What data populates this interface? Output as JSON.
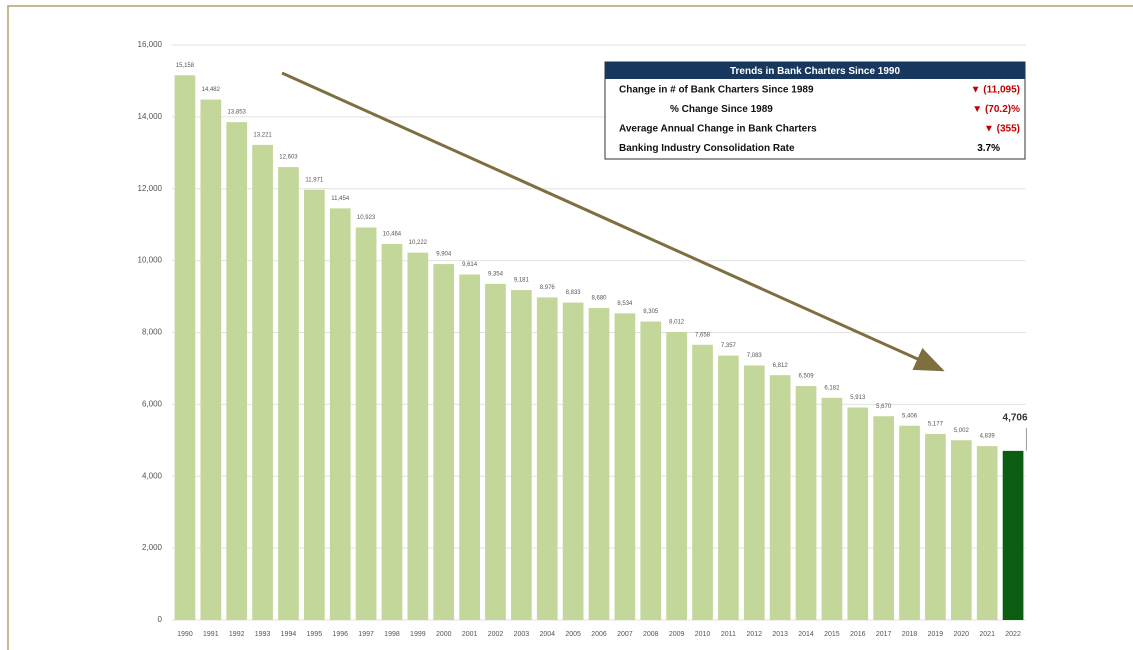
{
  "chart_data": {
    "type": "bar",
    "categories": [
      "1990",
      "1991",
      "1992",
      "1993",
      "1994",
      "1995",
      "1996",
      "1997",
      "1998",
      "1999",
      "2000",
      "2001",
      "2002",
      "2003",
      "2004",
      "2005",
      "2006",
      "2007",
      "2008",
      "2009",
      "2010",
      "2011",
      "2012",
      "2013",
      "2014",
      "2015",
      "2016",
      "2017",
      "2018",
      "2019",
      "2020",
      "2021",
      "2022"
    ],
    "values": [
      15158,
      14482,
      13853,
      13221,
      12603,
      11971,
      11454,
      10923,
      10464,
      10222,
      9904,
      9614,
      9354,
      9181,
      8976,
      8833,
      8680,
      8534,
      8305,
      8012,
      7658,
      7357,
      7083,
      6812,
      6509,
      6182,
      5913,
      5670,
      5406,
      5177,
      5002,
      4839,
      4706
    ],
    "value_labels": [
      "15,158",
      "14,482",
      "13,853",
      "13,221",
      "12,603",
      "11,971",
      "11,454",
      "10,923",
      "10,464",
      "10,222",
      "9,904",
      "9,614",
      "9,354",
      "9,181",
      "8,976",
      "8,833",
      "8,680",
      "8,534",
      "8,305",
      "8,012",
      "7,658",
      "7,357",
      "7,083",
      "6,812",
      "6,509",
      "6,182",
      "5,913",
      "5,670",
      "5,406",
      "5,177",
      "5,002",
      "4,839",
      "4,706"
    ],
    "colors": [
      "#c4d79b",
      "#c4d79b",
      "#c4d79b",
      "#c4d79b",
      "#c4d79b",
      "#c4d79b",
      "#c4d79b",
      "#c4d79b",
      "#c4d79b",
      "#c4d79b",
      "#c4d79b",
      "#c4d79b",
      "#c4d79b",
      "#c4d79b",
      "#c4d79b",
      "#c4d79b",
      "#c4d79b",
      "#c4d79b",
      "#c4d79b",
      "#c4d79b",
      "#c4d79b",
      "#c4d79b",
      "#c4d79b",
      "#c4d79b",
      "#c4d79b",
      "#c4d79b",
      "#c4d79b",
      "#c4d79b",
      "#c4d79b",
      "#c4d79b",
      "#c4d79b",
      "#c4d79b",
      "#0b5d12"
    ],
    "ylim": [
      0,
      16000
    ],
    "yticks": [
      0,
      {
        "value": 2000,
        "label": "2,000"
      },
      {
        "value": 4000,
        "label": "4,000"
      },
      {
        "value": 6000,
        "label": "6,000"
      },
      {
        "value": 8000,
        "label": "8,000"
      },
      {
        "value": 10000,
        "label": "10,000"
      },
      {
        "value": 12000,
        "label": "12,000"
      },
      {
        "value": 14000,
        "label": "14,000"
      },
      {
        "value": 16000,
        "label": "16,000"
      }
    ],
    "grid": true,
    "summary_table": {
      "title": "Trends in Bank Charters Since 1990",
      "rows": [
        {
          "label": "Change in # of Bank Charters Since 1989",
          "value": "▼ (11,095)",
          "color": "#c00000"
        },
        {
          "label": "% Change Since 1989",
          "value": "▼ (70.2)%",
          "color": "#c00000"
        },
        {
          "label": "Average Annual Change in Bank Charters",
          "value": "▼ (355)",
          "color": "#c00000"
        },
        {
          "label": "Banking Industry Consolidation Rate",
          "value": "3.7%",
          "color": "#000000"
        }
      ]
    }
  }
}
